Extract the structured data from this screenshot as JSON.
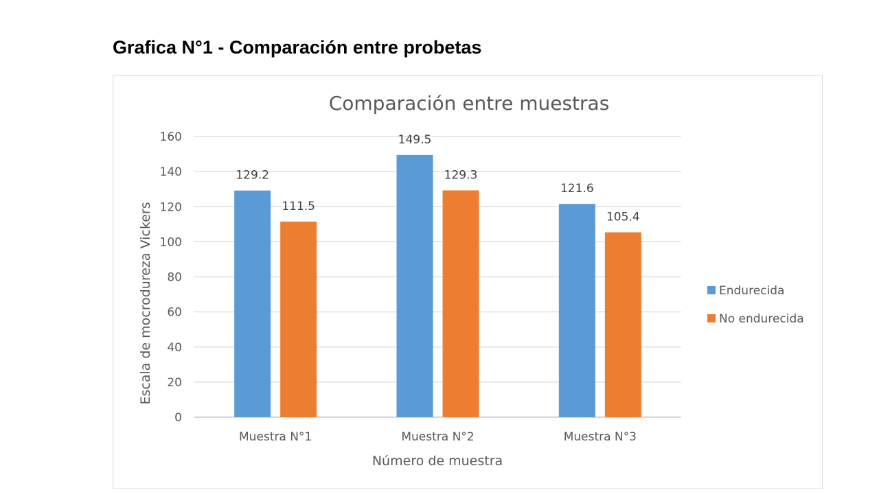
{
  "page": {
    "title": "Grafica N°1 - Comparación entre probetas"
  },
  "chart_data": {
    "type": "bar",
    "title": "Comparación entre muestras",
    "xlabel": "Número de muestra",
    "ylabel": "Escala de mocrodureza Vickers",
    "categories": [
      "Muestra N°1",
      "Muestra N°2",
      "Muestra N°3"
    ],
    "ylim": [
      0,
      160
    ],
    "yticks": [
      0,
      20,
      40,
      60,
      80,
      100,
      120,
      140,
      160
    ],
    "grid": true,
    "legend_position": "right",
    "data_labels": true,
    "series": [
      {
        "name": "Endurecida",
        "color": "#5B9BD5",
        "values": [
          129.2,
          149.5,
          121.6
        ]
      },
      {
        "name": "No endurecida",
        "color": "#ED7D31",
        "values": [
          111.5,
          129.3,
          105.4
        ]
      }
    ]
  }
}
